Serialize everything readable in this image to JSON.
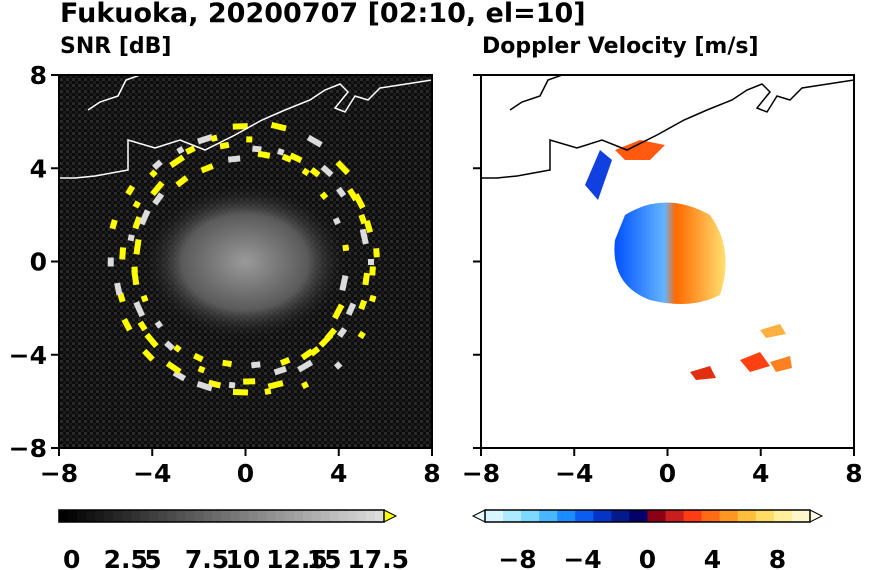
{
  "title": "Fukuoka, 20200707 [02:10, el=10]",
  "panels": [
    {
      "id": "snr",
      "title": "SNR [dB]"
    },
    {
      "id": "doppler",
      "title": "Doppler Velocity [m/s]"
    }
  ],
  "chart_data": [
    {
      "type": "heatmap",
      "title": "SNR [dB]",
      "xlim": [
        -8,
        8
      ],
      "ylim": [
        -8,
        8
      ],
      "xticks": [
        "−8",
        "−4",
        "0",
        "4",
        "8"
      ],
      "yticks": [
        "8",
        "4",
        "0",
        "−4",
        "−8"
      ],
      "colorbar": {
        "ticks": [
          "0",
          "2.5",
          "5",
          "7.5",
          "10",
          "12.5",
          "15",
          "17.5"
        ],
        "range": [
          0,
          18
        ],
        "colormap": "grayscale",
        "extend": "max",
        "extend_color": "#ffff00"
      },
      "features": [
        "ring of strong echo at ~6 km radius",
        "bright lighter texture near center"
      ],
      "background": "#000000",
      "ring_color": "#ffff00"
    },
    {
      "type": "heatmap",
      "title": "Doppler Velocity [m/s]",
      "xlim": [
        -8,
        8
      ],
      "ylim": [
        -8,
        8
      ],
      "xticks": [
        "−8",
        "−4",
        "0",
        "4",
        "8"
      ],
      "yticks": [],
      "colorbar": {
        "ticks": [
          "−8",
          "−4",
          "0",
          "4",
          "8"
        ],
        "range": [
          -10,
          10
        ],
        "colormap": "blue-white-red-yellow",
        "extend": "both"
      },
      "features": [
        "negative velocities west of center (blue)",
        "positive velocities east of center (orange/yellow)"
      ]
    }
  ]
}
